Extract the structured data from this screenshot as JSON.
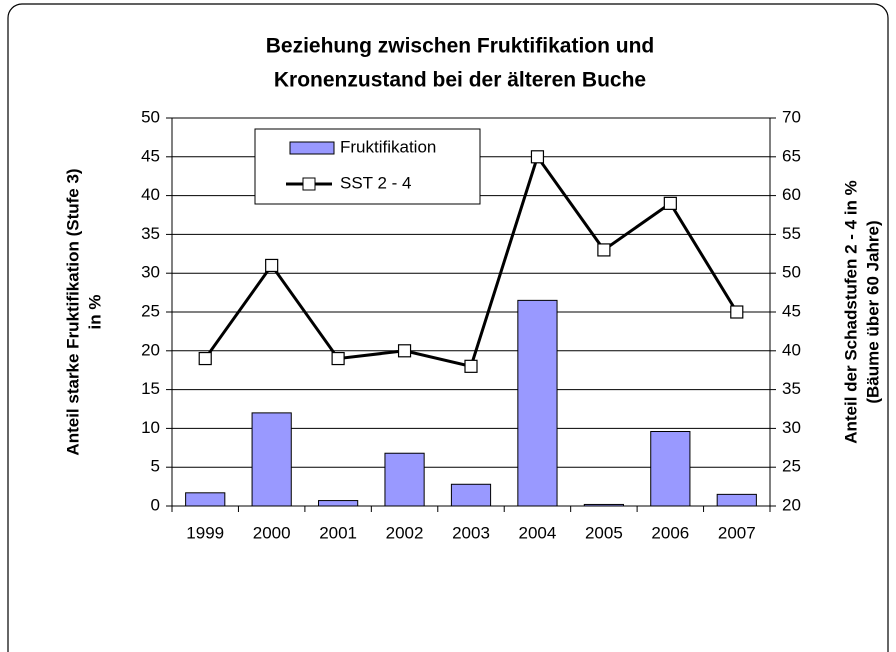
{
  "chart_data": {
    "type": "bar-line",
    "title": [
      "Beziehung zwischen Fruktifikation und",
      "Kronenzustand bei der älteren Buche"
    ],
    "categories": [
      "1999",
      "2000",
      "2001",
      "2002",
      "2003",
      "2004",
      "2005",
      "2006",
      "2007"
    ],
    "series": [
      {
        "name": "Fruktifikation",
        "type": "bar",
        "color": "#9999ff",
        "values": [
          1.7,
          12,
          0.7,
          6.8,
          2.8,
          26.5,
          0.2,
          9.6,
          1.5
        ]
      },
      {
        "name": "SST 2 - 4",
        "type": "line",
        "axis": "y2",
        "color": "#000000",
        "values": [
          39,
          51,
          39,
          40,
          38,
          65,
          53,
          59,
          45
        ]
      }
    ],
    "ylabel": [
      "Anteil starke Fruktifikation (Stufe 3)",
      "in %"
    ],
    "y2label": [
      "Anteil der Schadstufen 2 - 4 in %",
      "(Bäume über 60 Jahre)"
    ],
    "ylim": [
      0,
      50
    ],
    "yticks": [
      0,
      5,
      10,
      15,
      20,
      25,
      30,
      35,
      40,
      45,
      50
    ],
    "y2lim": [
      20,
      70
    ],
    "y2ticks": [
      20,
      25,
      30,
      35,
      40,
      45,
      50,
      55,
      60,
      65,
      70
    ],
    "grid": true
  }
}
